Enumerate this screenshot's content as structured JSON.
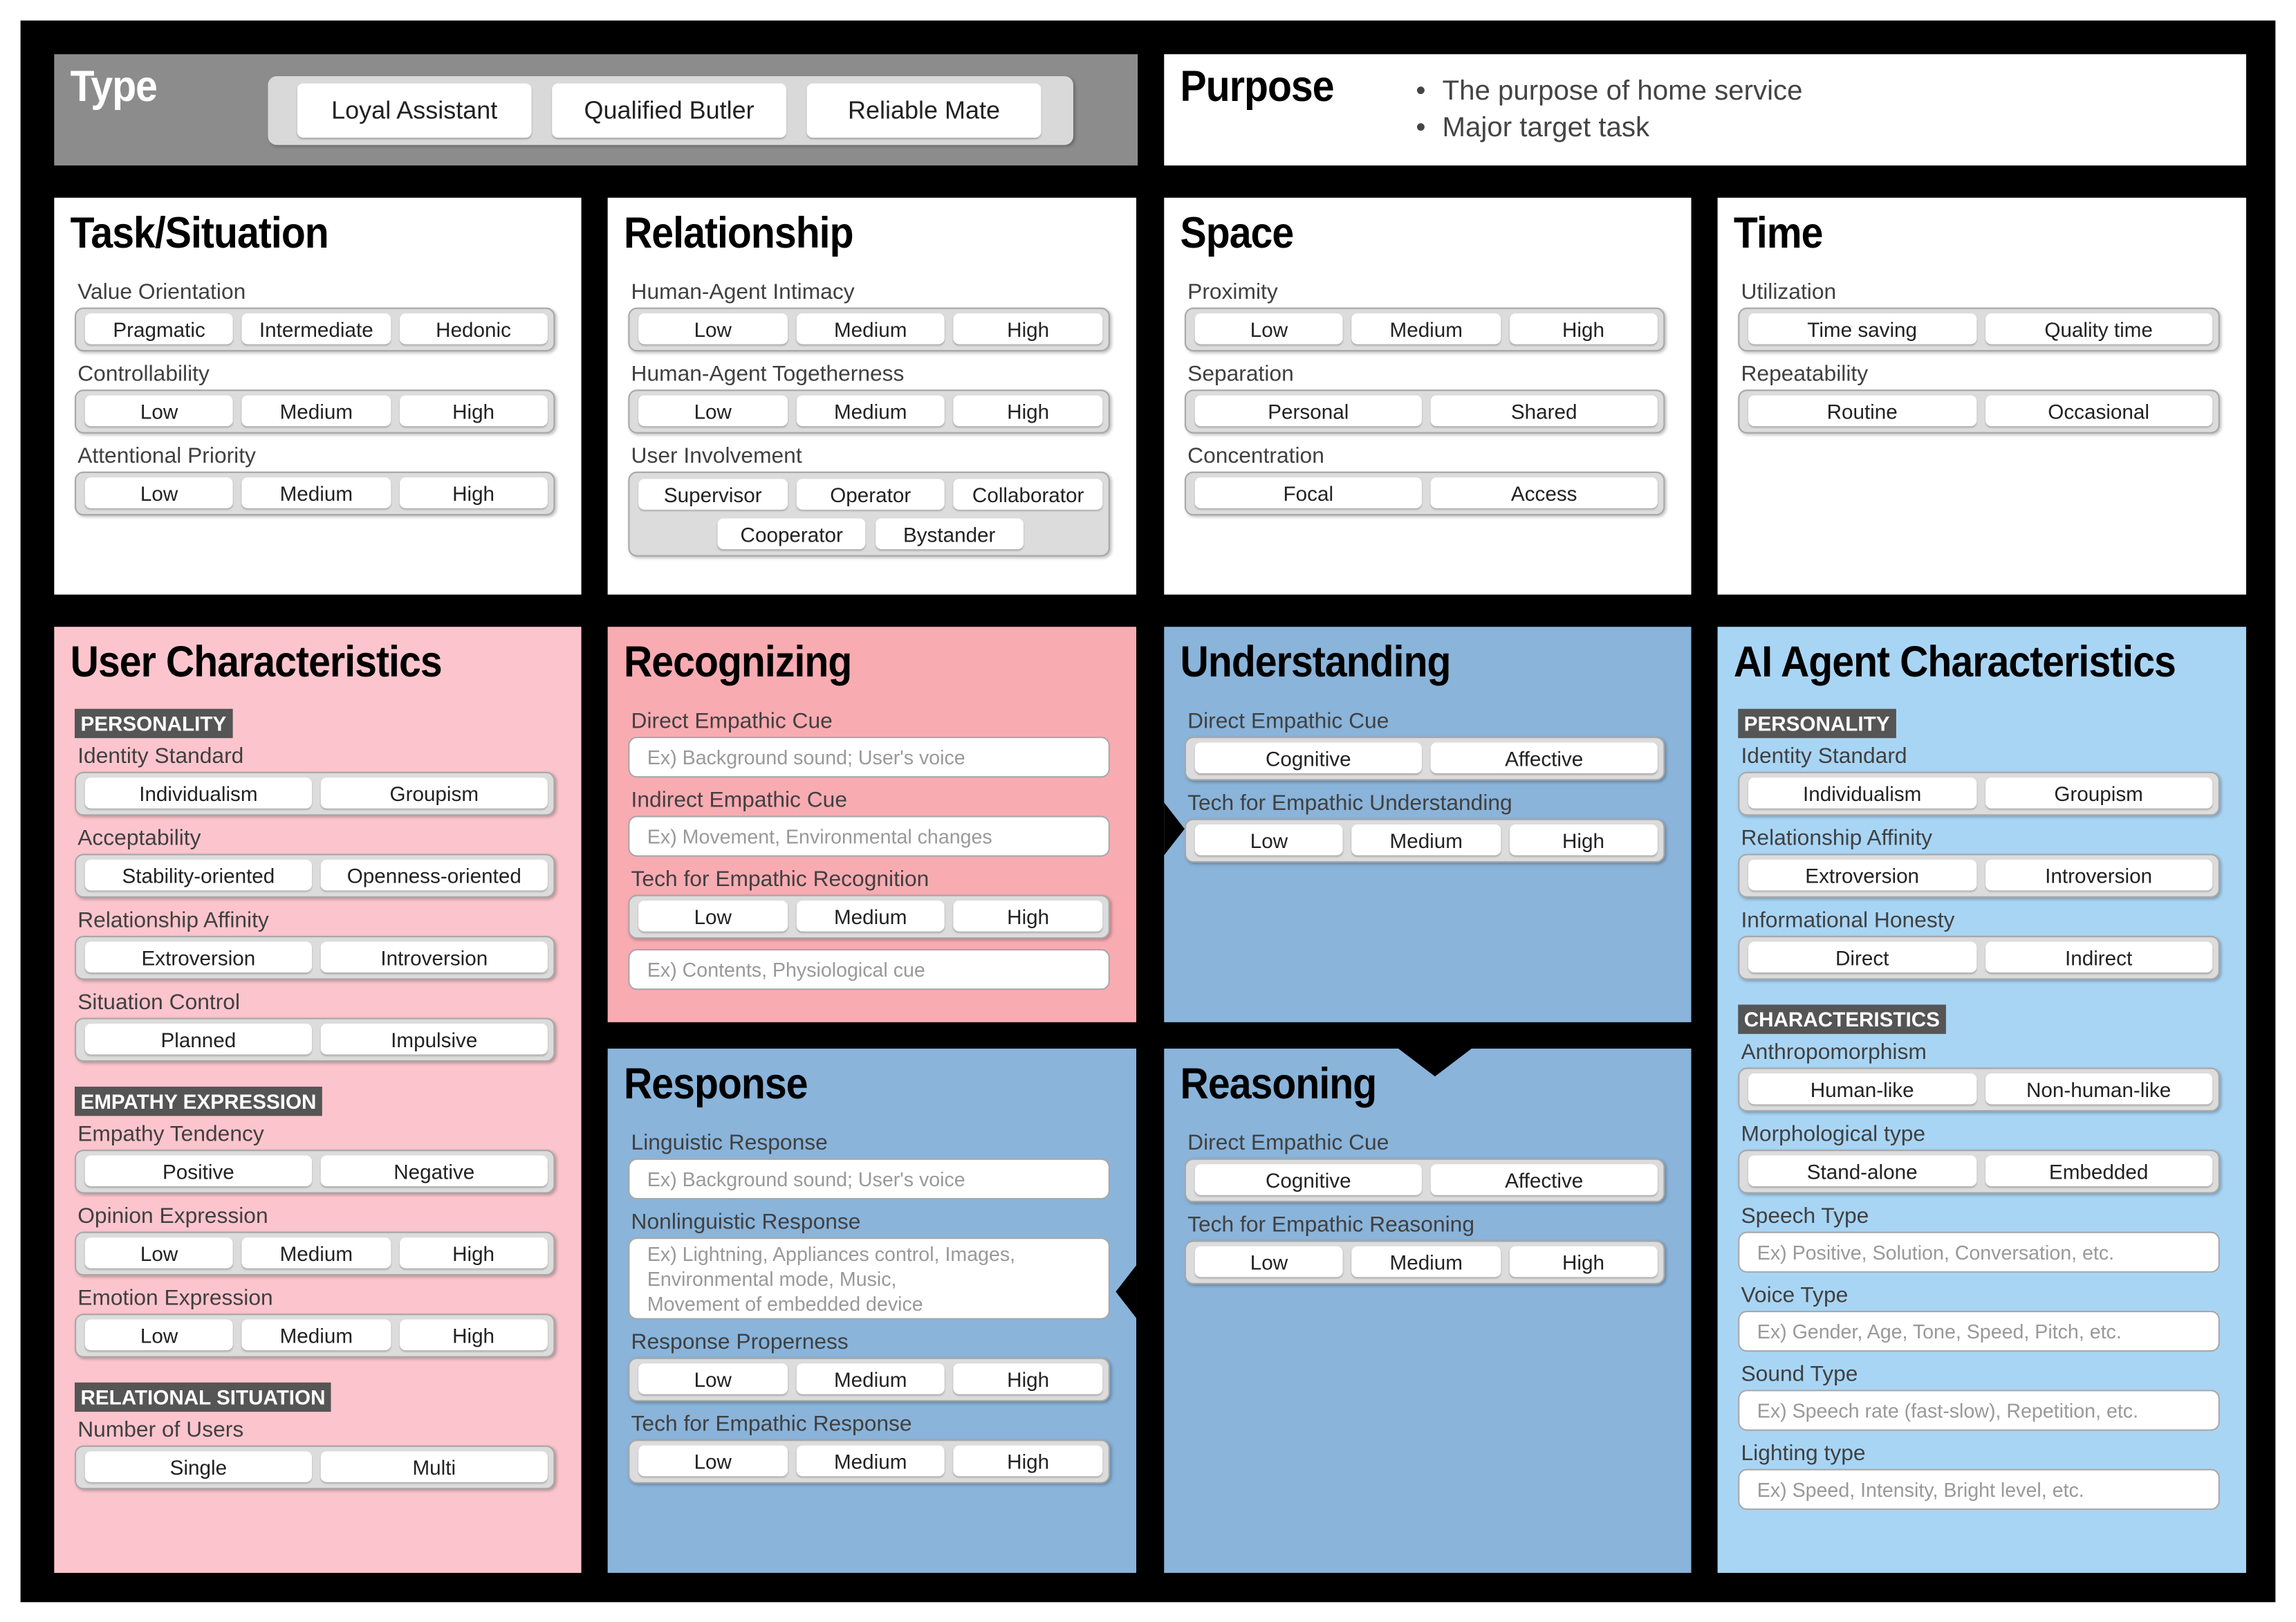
{
  "type_box": {
    "title": "Type",
    "options": [
      "Loyal Assistant",
      "Qualified Butler",
      "Reliable Mate"
    ]
  },
  "purpose": {
    "title": "Purpose",
    "bullets": [
      "The purpose of home service",
      "Major target task"
    ]
  },
  "panels": [
    {
      "title": "Task/Situation",
      "color": "#ffffff",
      "items": [
        {
          "label": "Value Orientation",
          "options": [
            "Pragmatic",
            "Intermediate",
            "Hedonic"
          ]
        },
        {
          "label": "Controllability",
          "options": [
            "Low",
            "Medium",
            "High"
          ]
        },
        {
          "label": "Attentional Priority",
          "options": [
            "Low",
            "Medium",
            "High"
          ]
        }
      ]
    },
    {
      "title": "Relationship",
      "color": "#ffffff",
      "items": [
        {
          "label": "Human-Agent Intimacy",
          "options": [
            "Low",
            "Medium",
            "High"
          ]
        },
        {
          "label": "Human-Agent Togetherness",
          "options": [
            "Low",
            "Medium",
            "High"
          ]
        },
        {
          "label": "User Involvement",
          "option_rows": [
            [
              "Supervisor",
              "Operator",
              "Collaborator"
            ],
            [
              "Cooperator",
              "Bystander"
            ]
          ]
        }
      ]
    },
    {
      "title": "Space",
      "color": "#ffffff",
      "items": [
        {
          "label": "Proximity",
          "options": [
            "Low",
            "Medium",
            "High"
          ]
        },
        {
          "label": "Separation",
          "options": [
            "Personal",
            "Shared"
          ]
        },
        {
          "label": "Concentration",
          "options": [
            "Focal",
            "Access"
          ]
        }
      ]
    },
    {
      "title": "Time",
      "color": "#ffffff",
      "items": [
        {
          "label": "Utilization",
          "options": [
            "Time saving",
            "Quality time"
          ]
        },
        {
          "label": "Repeatability",
          "options": [
            "Routine",
            "Occasional"
          ]
        }
      ]
    },
    {
      "title": "User Characteristics",
      "color": "#fcc5cd",
      "items": [
        {
          "tag": "PERSONALITY"
        },
        {
          "label": "Identity Standard",
          "options": [
            "Individualism",
            "Groupism"
          ]
        },
        {
          "label": "Acceptability",
          "options": [
            "Stability-oriented",
            "Openness-oriented"
          ]
        },
        {
          "label": "Relationship Affinity",
          "options": [
            "Extroversion",
            "Introversion"
          ]
        },
        {
          "label": "Situation Control",
          "options": [
            "Planned",
            "Impulsive"
          ]
        },
        {
          "tag": "EMPATHY EXPRESSION"
        },
        {
          "label": "Empathy Tendency",
          "options": [
            "Positive",
            "Negative"
          ]
        },
        {
          "label": "Opinion Expression",
          "options": [
            "Low",
            "Medium",
            "High"
          ]
        },
        {
          "label": "Emotion Expression",
          "options": [
            "Low",
            "Medium",
            "High"
          ]
        },
        {
          "tag": "RELATIONAL SITUATION"
        },
        {
          "label": "Number of Users",
          "options": [
            "Single",
            "Multi"
          ]
        }
      ]
    },
    {
      "title": "Recognizing",
      "color": "#f9abb2",
      "items": [
        {
          "label": "Direct Empathic Cue",
          "example": "Ex) Background sound; User's voice"
        },
        {
          "label": "Indirect Empathic Cue",
          "example": "Ex) Movement, Environmental changes"
        },
        {
          "label": "Tech for Empathic Recognition",
          "options": [
            "Low",
            "Medium",
            "High"
          ],
          "example": "Ex) Contents, Physiological cue"
        }
      ]
    },
    {
      "title": "Understanding",
      "color": "#8ab4da",
      "items": [
        {
          "label": "Direct Empathic Cue",
          "options": [
            "Cognitive",
            "Affective"
          ]
        },
        {
          "label": "Tech for Empathic Understanding",
          "options": [
            "Low",
            "Medium",
            "High"
          ]
        }
      ]
    },
    {
      "title": "Response",
      "color": "#8ab4da",
      "items": [
        {
          "label": "Linguistic Response",
          "example": "Ex) Background sound; User's voice"
        },
        {
          "label": "Nonlinguistic Response",
          "example": [
            "Ex) Lightning, Appliances control, Images,",
            "Environmental mode, Music,",
            "Movement of embedded device"
          ]
        },
        {
          "label": "Response Properness",
          "options": [
            "Low",
            "Medium",
            "High"
          ]
        },
        {
          "label": "Tech for Empathic Response",
          "options": [
            "Low",
            "Medium",
            "High"
          ]
        }
      ]
    },
    {
      "title": "Reasoning",
      "color": "#8ab4da",
      "items": [
        {
          "label": "Direct Empathic Cue",
          "options": [
            "Cognitive",
            "Affective"
          ]
        },
        {
          "label": "Tech for Empathic Reasoning",
          "options": [
            "Low",
            "Medium",
            "High"
          ]
        }
      ]
    },
    {
      "title": "AI Agent Characteristics",
      "color": "#a9d5f5",
      "items": [
        {
          "tag": "PERSONALITY"
        },
        {
          "label": "Identity Standard",
          "options": [
            "Individualism",
            "Groupism"
          ]
        },
        {
          "label": "Relationship Affinity",
          "options": [
            "Extroversion",
            "Introversion"
          ]
        },
        {
          "label": "Informational Honesty",
          "options": [
            "Direct",
            "Indirect"
          ]
        },
        {
          "tag": "CHARACTERISTICS"
        },
        {
          "label": "Anthropomorphism",
          "options": [
            "Human-like",
            "Non-human-like"
          ]
        },
        {
          "label": "Morphological type",
          "options": [
            "Stand-alone",
            "Embedded"
          ]
        },
        {
          "label": "Speech Type",
          "example": "Ex) Positive, Solution, Conversation, etc."
        },
        {
          "label": "Voice Type",
          "example": "Ex) Gender, Age, Tone, Speed, Pitch, etc."
        },
        {
          "label": "Sound Type",
          "example": "Ex) Speech rate (fast-slow), Repetition, etc."
        },
        {
          "label": "Lighting type",
          "example": "Ex) Speed, Intensity, Bright level, etc."
        }
      ]
    }
  ]
}
